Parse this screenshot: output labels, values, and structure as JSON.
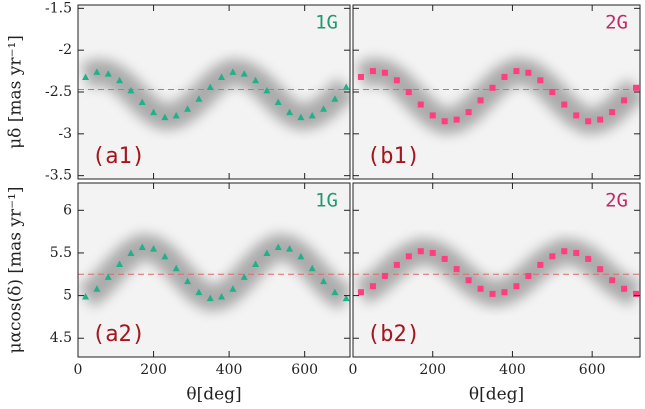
{
  "chart_data": [
    {
      "type": "scatter",
      "panel_label": "(a1)",
      "y_label": "μδ [mas yr⁻¹]",
      "marker": "triangle",
      "x": [
        20,
        50,
        80,
        110,
        140,
        170,
        200,
        230,
        260,
        290,
        320,
        350,
        380,
        410,
        440,
        470,
        500,
        530,
        560,
        590,
        620,
        650,
        680,
        710
      ],
      "series": [
        {
          "name": "1G",
          "color": "#22b08a",
          "label_color": "#1f9a6f",
          "values": [
            -2.32,
            -2.26,
            -2.28,
            -2.36,
            -2.48,
            -2.62,
            -2.74,
            -2.8,
            -2.78,
            -2.7,
            -2.58,
            -2.44,
            -2.32,
            -2.26,
            -2.28,
            -2.36,
            -2.48,
            -2.62,
            -2.74,
            -2.8,
            -2.78,
            -2.7,
            -2.58,
            -2.44
          ]
        }
      ],
      "hline": {
        "value": -2.47,
        "color": "#e06a6a"
      },
      "xlim": [
        0,
        720
      ],
      "xticks": [
        0,
        200,
        400,
        600
      ],
      "show_xtick_labels": false,
      "ylim": [
        -3.54,
        -1.46
      ],
      "yticks": [
        -1.5,
        -2,
        -2.5,
        -3,
        -3.5
      ],
      "show_ytick_labels": true
    },
    {
      "type": "scatter",
      "panel_label": "(b1)",
      "marker": "square",
      "x": [
        20,
        50,
        80,
        110,
        140,
        170,
        200,
        230,
        260,
        290,
        320,
        350,
        380,
        410,
        440,
        470,
        500,
        530,
        560,
        590,
        620,
        650,
        680,
        710
      ],
      "series": [
        {
          "name": "2G",
          "color": "#ff3d7f",
          "label_color": "#c02a68",
          "values": [
            -2.32,
            -2.25,
            -2.27,
            -2.36,
            -2.5,
            -2.65,
            -2.78,
            -2.85,
            -2.83,
            -2.74,
            -2.6,
            -2.45,
            -2.32,
            -2.25,
            -2.27,
            -2.36,
            -2.5,
            -2.65,
            -2.78,
            -2.85,
            -2.83,
            -2.74,
            -2.6,
            -2.45
          ]
        }
      ],
      "hline": {
        "value": -2.47,
        "color": "#e06a6a"
      },
      "xlim": [
        0,
        720
      ],
      "xticks": [
        0,
        200,
        400,
        600
      ],
      "show_xtick_labels": false,
      "ylim": [
        -3.54,
        -1.46
      ],
      "yticks": [
        -1.5,
        -2,
        -2.5,
        -3,
        -3.5
      ],
      "show_ytick_labels": false
    },
    {
      "type": "scatter",
      "panel_label": "(a2)",
      "y_label": "μαcos(δ) [mas yr⁻¹]",
      "x_label": "θ[deg]",
      "marker": "triangle",
      "x": [
        20,
        50,
        80,
        110,
        140,
        170,
        200,
        230,
        260,
        290,
        320,
        350,
        380,
        410,
        440,
        470,
        500,
        530,
        560,
        590,
        620,
        650,
        680,
        710
      ],
      "series": [
        {
          "name": "1G",
          "color": "#22b08a",
          "label_color": "#1f9a6f",
          "values": [
            4.99,
            5.08,
            5.22,
            5.37,
            5.5,
            5.57,
            5.55,
            5.46,
            5.32,
            5.17,
            5.04,
            4.97,
            4.99,
            5.08,
            5.22,
            5.37,
            5.5,
            5.57,
            5.55,
            5.46,
            5.32,
            5.17,
            5.04,
            4.97
          ]
        }
      ],
      "hline": {
        "value": 5.25,
        "color": "#e06a6a"
      },
      "xlim": [
        0,
        720
      ],
      "xticks": [
        0,
        200,
        400,
        600
      ],
      "show_xtick_labels": true,
      "ylim": [
        4.28,
        6.32
      ],
      "yticks": [
        4.5,
        5,
        5.5,
        6
      ],
      "show_ytick_labels": true
    },
    {
      "type": "scatter",
      "panel_label": "(b2)",
      "x_label": "θ[deg]",
      "marker": "square",
      "x": [
        20,
        50,
        80,
        110,
        140,
        170,
        200,
        230,
        260,
        290,
        320,
        350,
        380,
        410,
        440,
        470,
        500,
        530,
        560,
        590,
        620,
        650,
        680,
        710
      ],
      "series": [
        {
          "name": "2G",
          "color": "#ff3d7f",
          "label_color": "#c02a68",
          "values": [
            5.04,
            5.11,
            5.23,
            5.36,
            5.46,
            5.52,
            5.5,
            5.43,
            5.31,
            5.18,
            5.08,
            5.02,
            5.04,
            5.11,
            5.23,
            5.36,
            5.46,
            5.52,
            5.5,
            5.43,
            5.31,
            5.18,
            5.08,
            5.02
          ]
        }
      ],
      "hline": {
        "value": 5.25,
        "color": "#e06a6a"
      },
      "xlim": [
        0,
        720
      ],
      "xticks": [
        0,
        200,
        400,
        600
      ],
      "show_xtick_labels": true,
      "ylim": [
        4.28,
        6.32
      ],
      "yticks": [
        4.5,
        5,
        5.5,
        6
      ],
      "show_ytick_labels": false
    }
  ]
}
